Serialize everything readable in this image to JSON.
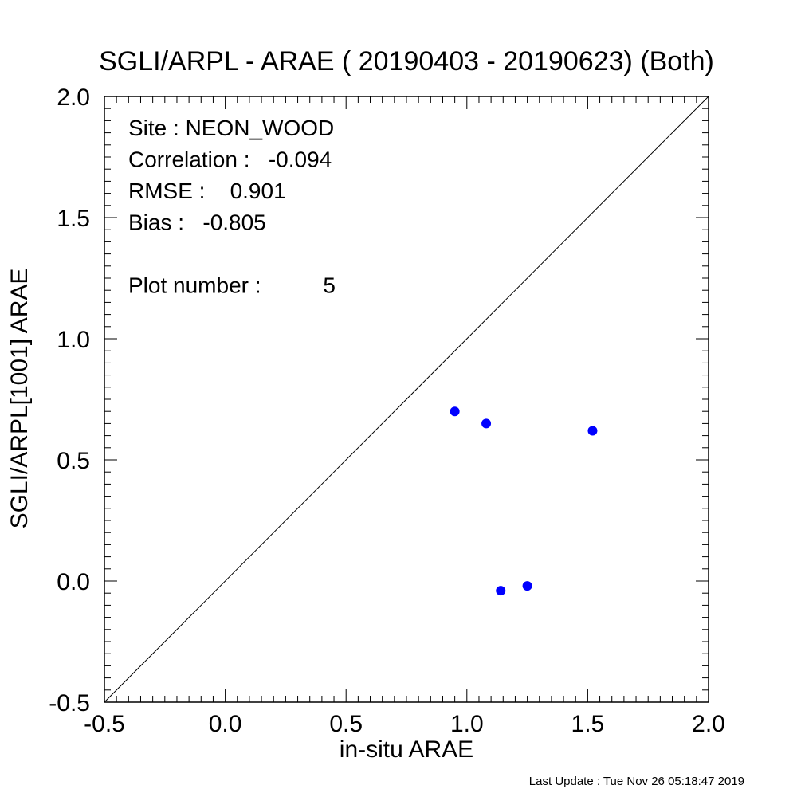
{
  "chart_data": {
    "type": "scatter",
    "title": "SGLI/ARPL - ARAE ( 20190403 - 20190623) (Both)",
    "xlabel": "in-situ ARAE",
    "ylabel": "SGLI/ARPL[1001]    ARAE",
    "xlim": [
      -0.5,
      2.0
    ],
    "ylim": [
      -0.5,
      2.0
    ],
    "x_ticks": [
      "-0.5",
      "0.0",
      "0.5",
      "1.0",
      "1.5",
      "2.0"
    ],
    "y_ticks": [
      "-0.5",
      "0.0",
      "0.5",
      "1.0",
      "1.5",
      "2.0"
    ],
    "grid": false,
    "reference_line": "1:1",
    "point_color": "#0000ff",
    "points": [
      {
        "x": 0.95,
        "y": 0.7
      },
      {
        "x": 1.08,
        "y": 0.65
      },
      {
        "x": 1.52,
        "y": 0.62
      },
      {
        "x": 1.14,
        "y": -0.04
      },
      {
        "x": 1.25,
        "y": -0.02
      }
    ],
    "stats": [
      "Site : NEON_WOOD",
      "Correlation :   -0.094",
      "RMSE :    0.901",
      "Bias :   -0.805",
      "",
      "Plot number :          5"
    ]
  },
  "footer": "Last Update : Tue Nov 26 05:18:47 2019"
}
